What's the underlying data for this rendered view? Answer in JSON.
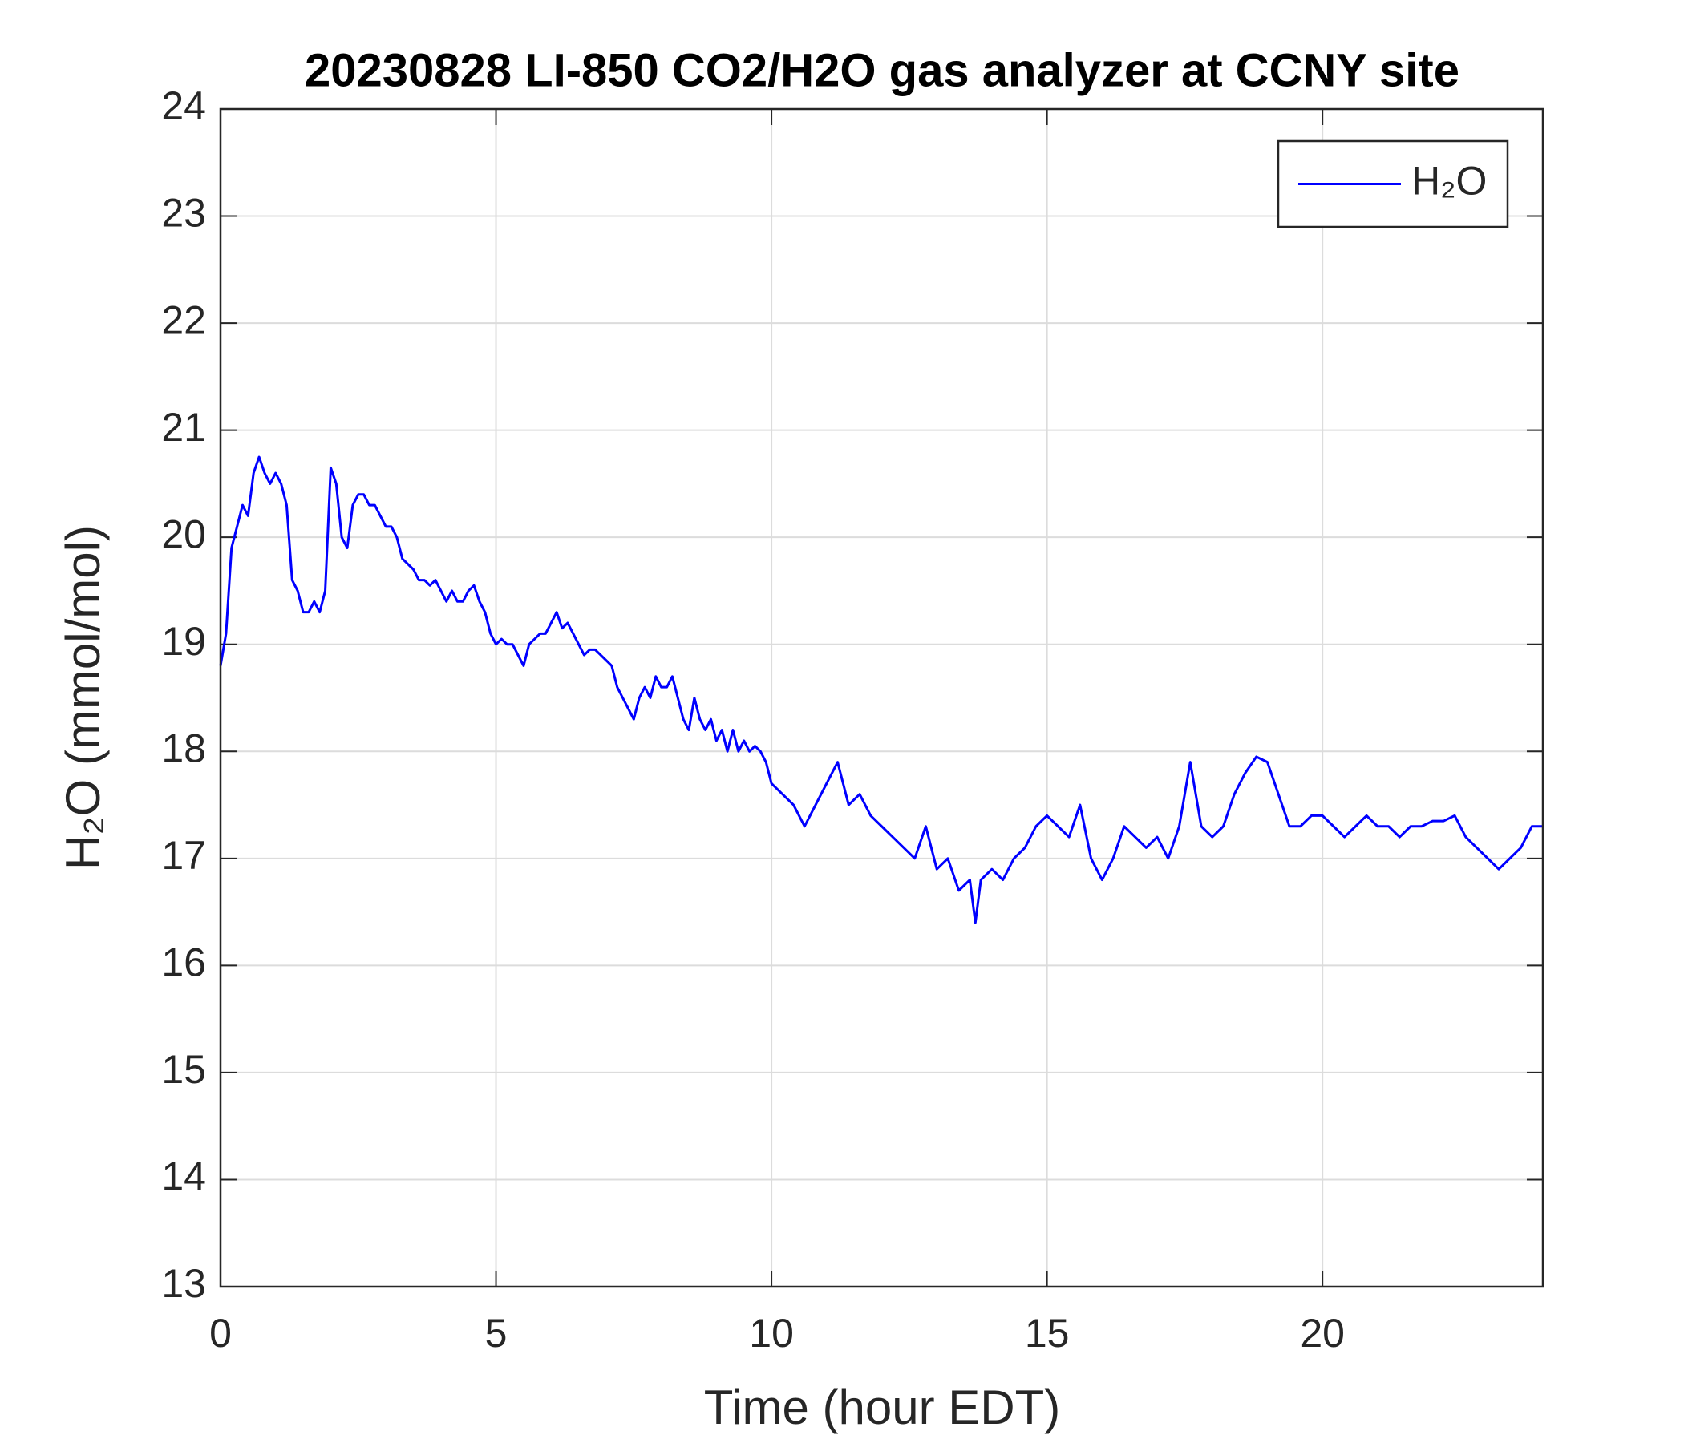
{
  "chart_data": {
    "type": "line",
    "title": "20230828 LI-850 CO2/H2O gas analyzer at CCNY site",
    "xlabel": "Time (hour EDT)",
    "ylabel": "H₂O (mmol/mol)",
    "x": [
      0,
      0.1,
      0.2,
      0.3,
      0.4,
      0.5,
      0.6,
      0.7,
      0.8,
      0.9,
      1.0,
      1.1,
      1.2,
      1.3,
      1.4,
      1.5,
      1.6,
      1.7,
      1.8,
      1.9,
      2.0,
      2.1,
      2.2,
      2.3,
      2.4,
      2.5,
      2.6,
      2.7,
      2.8,
      2.9,
      3.0,
      3.1,
      3.2,
      3.3,
      3.4,
      3.5,
      3.6,
      3.7,
      3.8,
      3.9,
      4.0,
      4.1,
      4.2,
      4.3,
      4.4,
      4.5,
      4.6,
      4.7,
      4.8,
      4.9,
      5.0,
      5.1,
      5.2,
      5.3,
      5.4,
      5.5,
      5.6,
      5.7,
      5.8,
      5.9,
      6.0,
      6.1,
      6.2,
      6.3,
      6.4,
      6.5,
      6.6,
      6.7,
      6.8,
      6.9,
      7.0,
      7.1,
      7.2,
      7.3,
      7.4,
      7.5,
      7.6,
      7.7,
      7.8,
      7.9,
      8.0,
      8.1,
      8.2,
      8.3,
      8.4,
      8.5,
      8.6,
      8.7,
      8.8,
      8.9,
      9.0,
      9.1,
      9.2,
      9.3,
      9.4,
      9.5,
      9.6,
      9.7,
      9.8,
      9.9,
      10.0,
      10.2,
      10.4,
      10.6,
      10.8,
      11.0,
      11.2,
      11.4,
      11.6,
      11.8,
      12.0,
      12.2,
      12.4,
      12.6,
      12.8,
      13.0,
      13.2,
      13.4,
      13.6,
      13.7,
      13.8,
      14.0,
      14.2,
      14.4,
      14.6,
      14.8,
      15.0,
      15.2,
      15.4,
      15.6,
      15.8,
      16.0,
      16.2,
      16.4,
      16.6,
      16.8,
      17.0,
      17.2,
      17.4,
      17.6,
      17.8,
      18.0,
      18.2,
      18.4,
      18.6,
      18.8,
      19.0,
      19.2,
      19.4,
      19.6,
      19.8,
      20.0,
      20.2,
      20.4,
      20.6,
      20.8,
      21.0,
      21.2,
      21.4,
      21.6,
      21.8,
      22.0,
      22.2,
      22.4,
      22.6,
      22.8,
      23.0,
      23.2,
      23.4,
      23.6,
      23.8,
      24.0
    ],
    "series": [
      {
        "name": "H₂O",
        "color": "#0000ff",
        "values": [
          18.8,
          19.1,
          19.9,
          20.1,
          20.3,
          20.2,
          20.6,
          20.75,
          20.6,
          20.5,
          20.6,
          20.5,
          20.3,
          19.6,
          19.5,
          19.3,
          19.3,
          19.4,
          19.3,
          19.5,
          20.65,
          20.5,
          20.0,
          19.9,
          20.3,
          20.4,
          20.4,
          20.3,
          20.3,
          20.2,
          20.1,
          20.1,
          20.0,
          19.8,
          19.75,
          19.7,
          19.6,
          19.6,
          19.55,
          19.6,
          19.5,
          19.4,
          19.5,
          19.4,
          19.4,
          19.5,
          19.55,
          19.4,
          19.3,
          19.1,
          19.0,
          19.05,
          19.0,
          19.0,
          18.9,
          18.8,
          19.0,
          19.05,
          19.1,
          19.1,
          19.2,
          19.3,
          19.15,
          19.2,
          19.1,
          19.0,
          18.9,
          18.95,
          18.95,
          18.9,
          18.85,
          18.8,
          18.6,
          18.5,
          18.4,
          18.3,
          18.5,
          18.6,
          18.5,
          18.7,
          18.6,
          18.6,
          18.7,
          18.5,
          18.3,
          18.2,
          18.5,
          18.3,
          18.2,
          18.3,
          18.1,
          18.2,
          18.0,
          18.2,
          18.0,
          18.1,
          18.0,
          18.05,
          18.0,
          17.9,
          17.7,
          17.6,
          17.5,
          17.3,
          17.5,
          17.7,
          17.9,
          17.5,
          17.6,
          17.4,
          17.3,
          17.2,
          17.1,
          17.0,
          17.3,
          16.9,
          17.0,
          16.7,
          16.8,
          16.4,
          16.8,
          16.9,
          16.8,
          17.0,
          17.1,
          17.3,
          17.4,
          17.3,
          17.2,
          17.5,
          17.0,
          16.8,
          17.0,
          17.3,
          17.2,
          17.1,
          17.2,
          17.0,
          17.3,
          17.9,
          17.3,
          17.2,
          17.3,
          17.6,
          17.8,
          17.95,
          17.9,
          17.6,
          17.3,
          17.3,
          17.4,
          17.4,
          17.3,
          17.2,
          17.3,
          17.4,
          17.3,
          17.3,
          17.2,
          17.3,
          17.3,
          17.35,
          17.35,
          17.4,
          17.2,
          17.1,
          17.0,
          16.9,
          17.0,
          17.1,
          17.3,
          17.3
        ]
      }
    ],
    "xlim": [
      0,
      24
    ],
    "xticks": [
      0,
      5,
      10,
      15,
      20
    ],
    "ylim": [
      13,
      24
    ],
    "yticks": [
      13,
      14,
      15,
      16,
      17,
      18,
      19,
      20,
      21,
      22,
      23,
      24
    ],
    "grid": true,
    "legend": "upper right"
  }
}
